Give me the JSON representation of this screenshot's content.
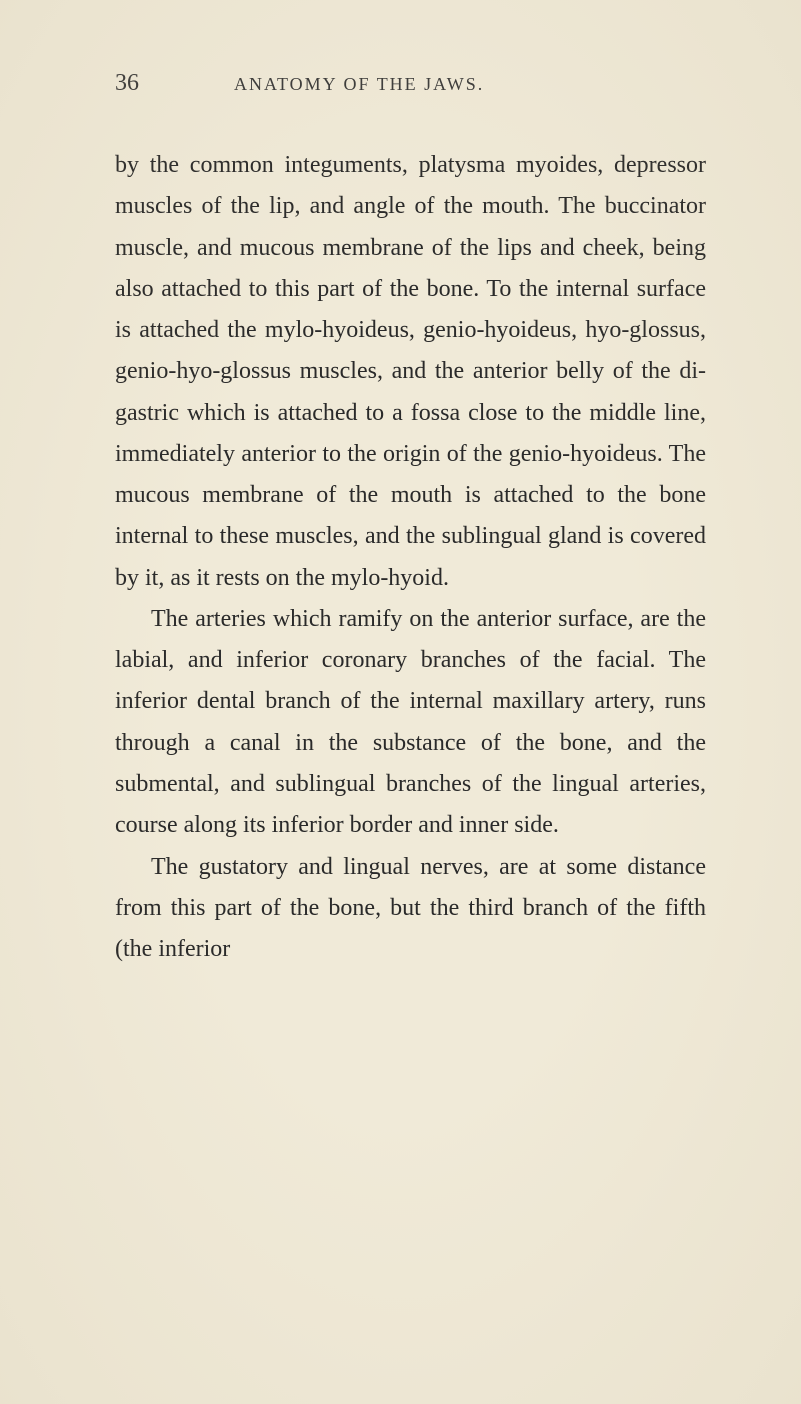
{
  "header": {
    "page_number": "36",
    "running_head": "ANATOMY OF THE JAWS."
  },
  "paragraphs": [
    {
      "indent": false,
      "text": "by the common integuments, platysma myoides, depressor muscles of the lip, and angle of the mouth. The buccinator muscle, and mucous membrane of the lips and cheek, being also attached to this part of the bone. To the internal surface is attached the mylo-hyoideus, genio-hyoideus, hyo-glossus, genio-hyo-glossus muscles, and the anterior belly of the di-gastric which is attached to a fossa close to the middle line, immediately anterior to the origin of the genio-hyoideus. The mucous membrane of the mouth is attached to the bone internal to these muscles, and the sublingual gland is covered by it, as it rests on the mylo-hyoid."
    },
    {
      "indent": true,
      "text": "The arteries which ramify on the anterior surface, are the labial, and inferior coronary branches of the facial. The inferior dental branch of the internal maxillary artery, runs through a canal in the substance of the bone, and the submental, and sublingual branches of the lingual arteries, course along its inferior border and inner side."
    },
    {
      "indent": true,
      "text": "The gustatory and lingual nerves, are at some distance from this part of the bone, but the third branch of the fifth (the inferior"
    }
  ],
  "colors": {
    "background": "#f0ead8",
    "text": "#2a2a2a",
    "header_text": "#3a3a3a"
  },
  "typography": {
    "body_fontsize": 24,
    "page_number_fontsize": 24,
    "running_head_fontsize": 18,
    "line_height": 1.72,
    "font_family": "Georgia, Times New Roman, serif"
  }
}
